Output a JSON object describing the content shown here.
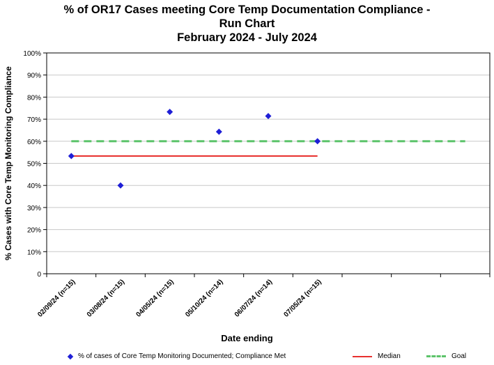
{
  "chart_data": {
    "type": "scatter",
    "title_lines": [
      "% of OR17 Cases meeting Core Temp Documentation Compliance -",
      "Run Chart",
      "February 2024 - July 2024"
    ],
    "xlabel": "Date ending",
    "ylabel": "% Cases with Core Temp Monitoring Compliance",
    "ylim": [
      0,
      100
    ],
    "y_ticks": [
      "0",
      "10%",
      "20%",
      "30%",
      "40%",
      "50%",
      "60%",
      "70%",
      "80%",
      "90%",
      "100%"
    ],
    "categories": [
      "02/09/24 (n=15)",
      "03/08/24 (n=15)",
      "04/05/24 (n=15)",
      "05/10/24 (n=14)",
      "06/07/24 (n=14)",
      "07/05/24 (n=15)"
    ],
    "category_slots": 9,
    "series": [
      {
        "name": "% of cases of Core Temp Monitoring Documented; Compliance Met",
        "kind": "points",
        "values": [
          53.3,
          40.0,
          73.3,
          64.3,
          71.4,
          60.0
        ],
        "color": "#1f1fd6"
      },
      {
        "name": "Median",
        "kind": "line",
        "value": 53.3,
        "from_index": 0,
        "to_index": 5,
        "color": "#e8302e"
      },
      {
        "name": "Goal",
        "kind": "dashed-line",
        "value": 60,
        "from_index": 0,
        "to_index": 8,
        "color": "#5cc46a"
      }
    ],
    "grid": true,
    "legend_position": "bottom"
  }
}
